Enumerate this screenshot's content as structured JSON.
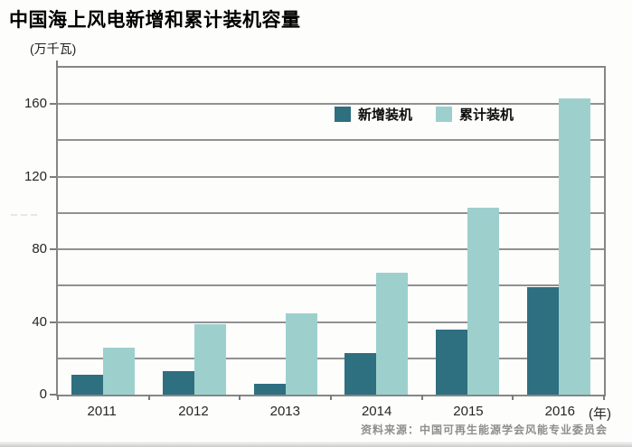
{
  "figure": {
    "title": "中国海上风电新增和累计装机容量",
    "unit_label": "(万千瓦)",
    "year_suffix": "(年)",
    "source": "资料来源：中国可再生能源学会风能专业委员会"
  },
  "chart_data": {
    "type": "bar",
    "title": "中国海上风电新增和累计装机容量",
    "xlabel": "年",
    "ylabel": "万千瓦",
    "categories": [
      "2011",
      "2012",
      "2013",
      "2014",
      "2015",
      "2016"
    ],
    "series": [
      {
        "key": "new-installed",
        "name": "新增装机",
        "color": "#2e6f80",
        "values": [
          11,
          13,
          6,
          23,
          36,
          59
        ]
      },
      {
        "key": "cumulative-installed",
        "name": "累计装机",
        "color": "#9dd0cd",
        "values": [
          26,
          39,
          45,
          67,
          103,
          163
        ]
      }
    ],
    "ylim": [
      0,
      180
    ],
    "yticks": [
      0,
      40,
      80,
      120,
      160
    ],
    "grid_step": 20,
    "grid": true,
    "legend_position": "inside-top-center"
  },
  "colors": {
    "bar_new": "#2e6f80",
    "bar_cumulative": "#9dd0cd",
    "gridline": "#919191",
    "axis": "#7c7c7c",
    "border": "#868686",
    "title_text": "#000000",
    "tick_text": "#262626",
    "source_text": "#8e8e8e",
    "background": "#fdfdfc"
  }
}
